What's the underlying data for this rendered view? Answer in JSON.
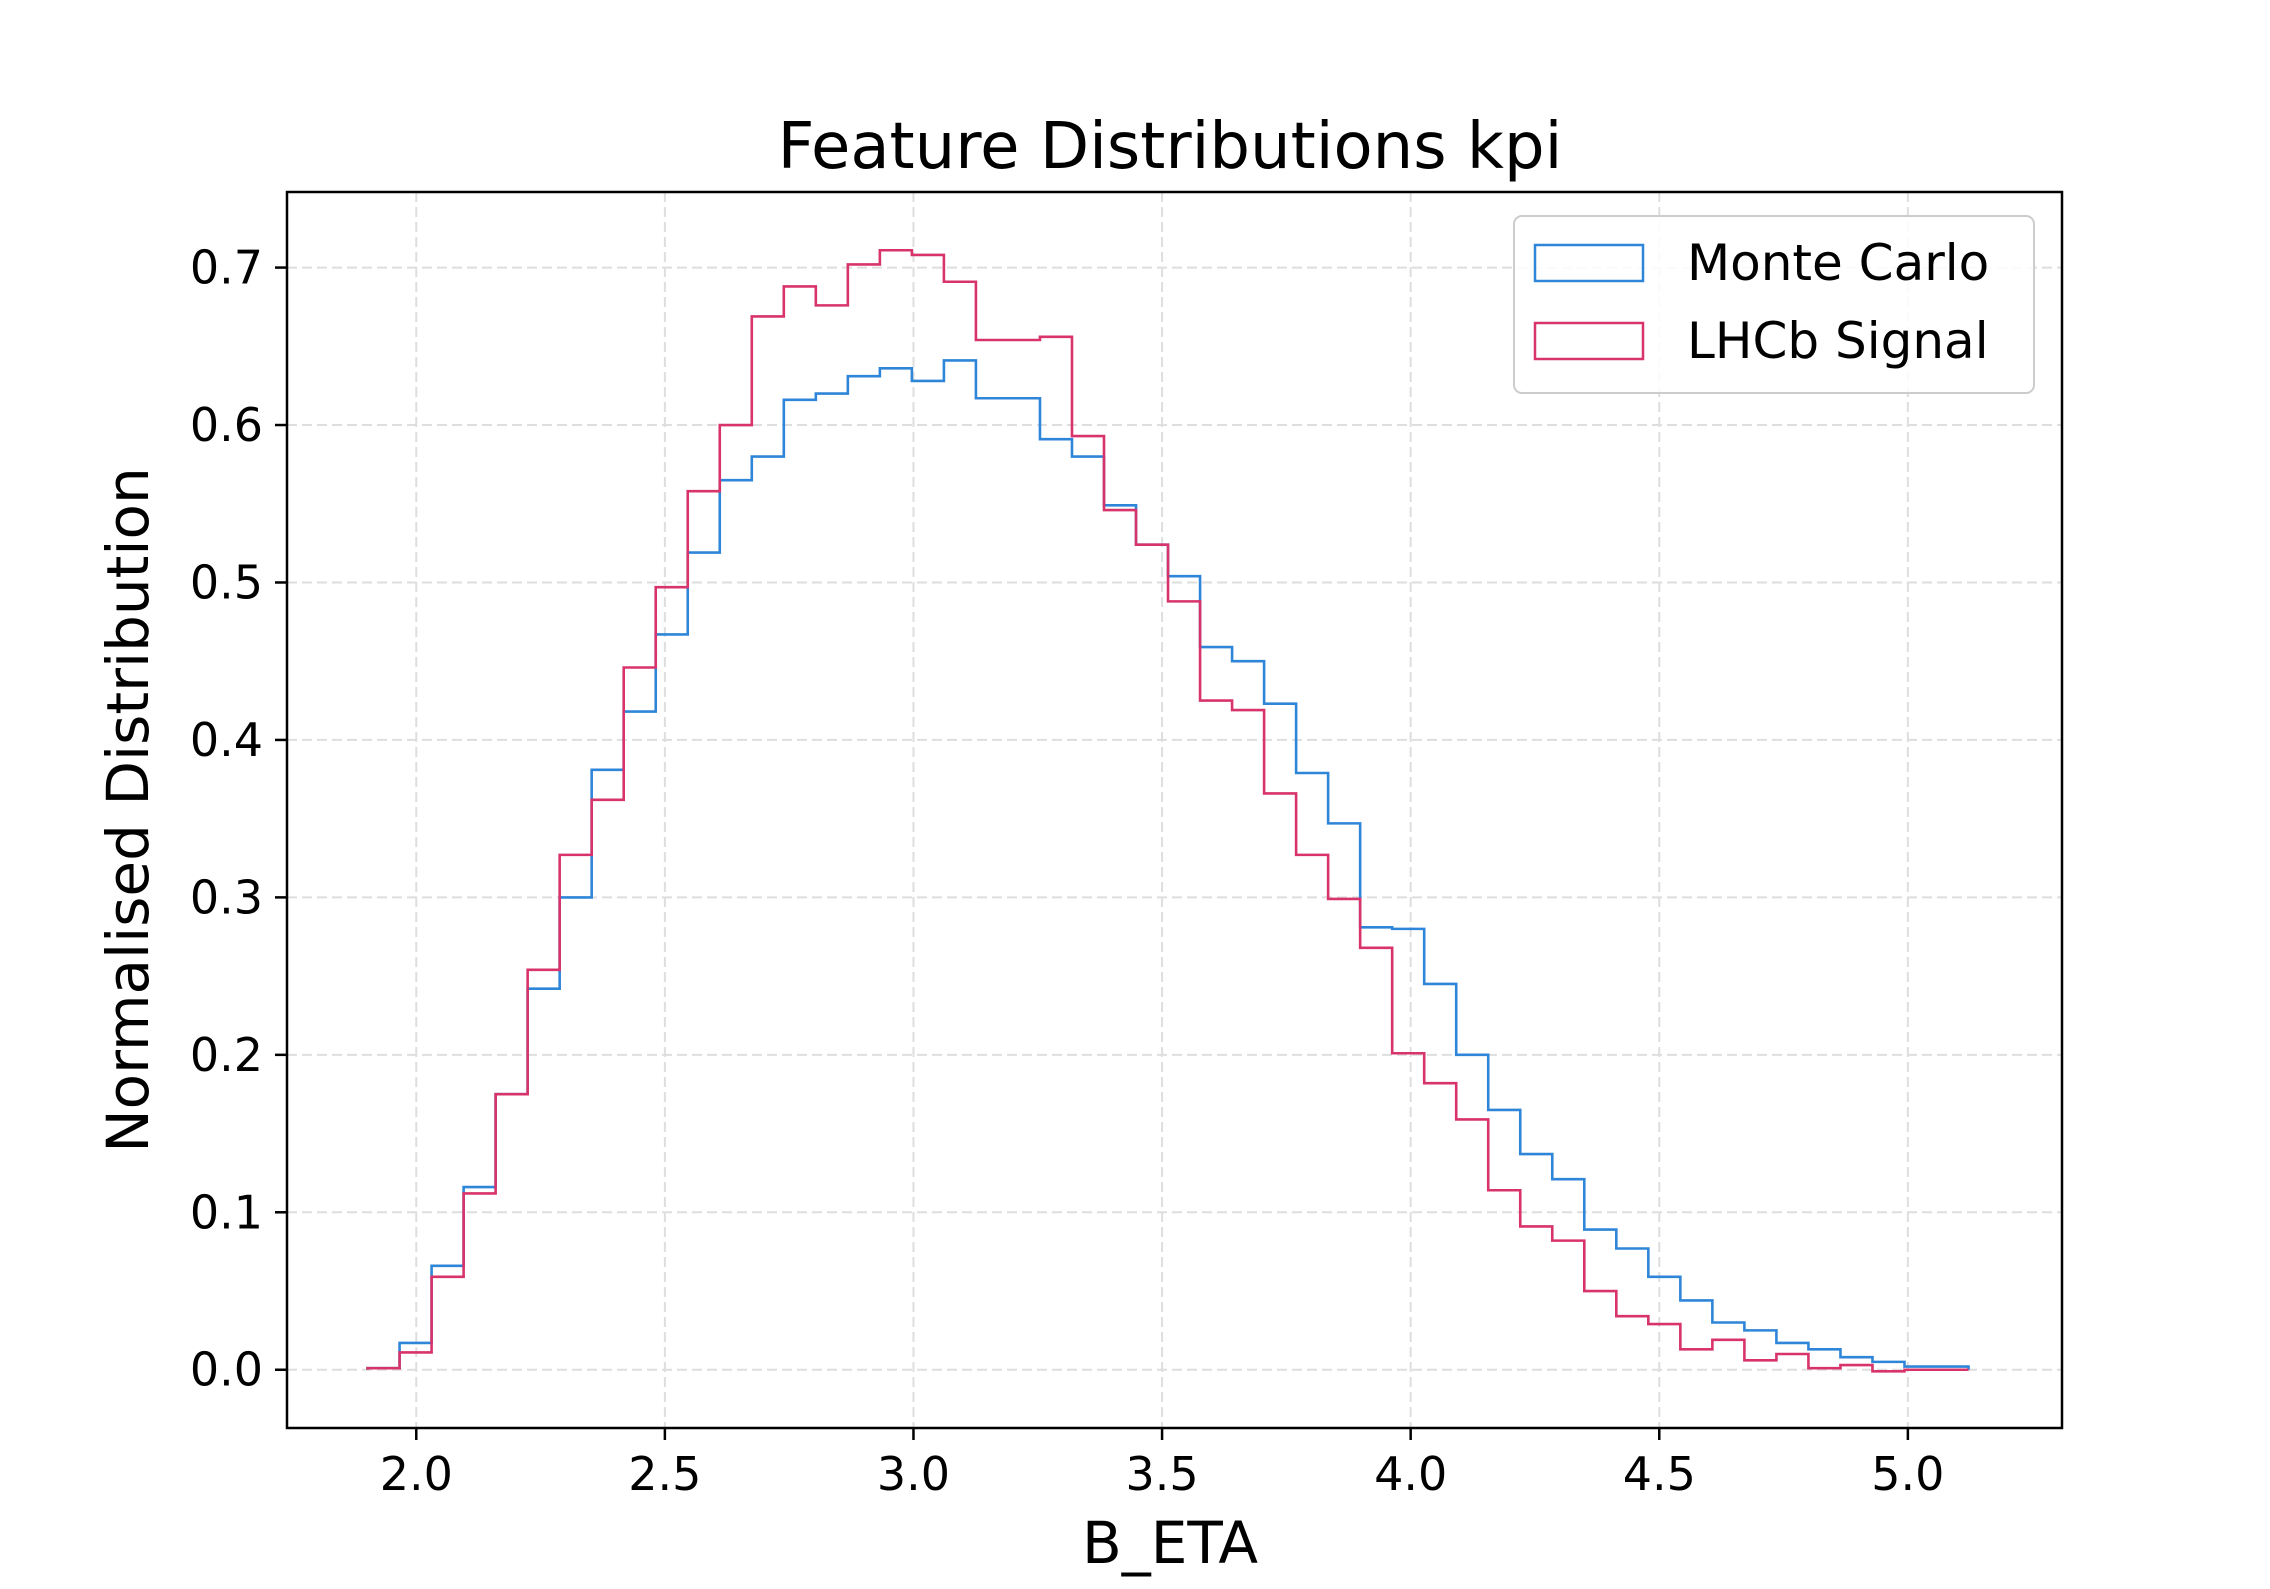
{
  "chart_data": {
    "type": "histogram",
    "title": "Feature Distributions kpi",
    "xlabel": "B_ETA",
    "ylabel": "Normalised Distribution",
    "xlim": [
      1.74,
      5.31
    ],
    "ylim": [
      -0.037,
      0.748
    ],
    "xticks": [
      2.0,
      2.5,
      3.0,
      3.5,
      4.0,
      4.5,
      5.0
    ],
    "xtick_labels": [
      "2.0",
      "2.5",
      "3.0",
      "3.5",
      "4.0",
      "4.5",
      "5.0"
    ],
    "yticks": [
      0.0,
      0.1,
      0.2,
      0.3,
      0.4,
      0.5,
      0.6,
      0.7
    ],
    "ytick_labels": [
      "0.0",
      "0.1",
      "0.2",
      "0.3",
      "0.4",
      "0.5",
      "0.6",
      "0.7"
    ],
    "grid": true,
    "legend_position": "top-right",
    "bin_edges": [
      1.902,
      1.9664,
      2.0308,
      2.0952,
      2.1596,
      2.224,
      2.2884,
      2.3528,
      2.4172,
      2.4816,
      2.546,
      2.6104,
      2.6748,
      2.7392,
      2.8036,
      2.868,
      2.9324,
      2.9968,
      3.0612,
      3.1256,
      3.19,
      3.2544,
      3.3188,
      3.3832,
      3.4476,
      3.512,
      3.5764,
      3.6408,
      3.7052,
      3.7696,
      3.834,
      3.8984,
      3.9628,
      4.0272,
      4.0916,
      4.156,
      4.2204,
      4.2848,
      4.3492,
      4.4136,
      4.478,
      4.5424,
      4.6068,
      4.6712,
      4.7356,
      4.8,
      4.8644,
      4.9288,
      4.9932,
      5.0576,
      5.122
    ],
    "series": [
      {
        "name": "Monte Carlo",
        "color": "#2f86d8",
        "values": [
          0.001,
          0.017,
          0.066,
          0.116,
          0.175,
          0.242,
          0.3,
          0.381,
          0.418,
          0.467,
          0.519,
          0.565,
          0.58,
          0.616,
          0.62,
          0.631,
          0.636,
          0.628,
          0.641,
          0.617,
          0.617,
          0.591,
          0.58,
          0.549,
          0.524,
          0.504,
          0.459,
          0.45,
          0.423,
          0.379,
          0.347,
          0.281,
          0.28,
          0.245,
          0.2,
          0.165,
          0.137,
          0.121,
          0.089,
          0.077,
          0.059,
          0.044,
          0.03,
          0.025,
          0.017,
          0.013,
          0.008,
          0.005,
          0.002,
          0.002
        ]
      },
      {
        "name": "LHCb Signal",
        "color": "#d8336a",
        "values": [
          0.001,
          0.011,
          0.059,
          0.112,
          0.175,
          0.254,
          0.327,
          0.362,
          0.446,
          0.497,
          0.558,
          0.6,
          0.669,
          0.688,
          0.676,
          0.702,
          0.711,
          0.708,
          0.691,
          0.654,
          0.654,
          0.656,
          0.593,
          0.546,
          0.524,
          0.488,
          0.425,
          0.419,
          0.366,
          0.327,
          0.299,
          0.268,
          0.201,
          0.182,
          0.159,
          0.114,
          0.091,
          0.082,
          0.05,
          0.034,
          0.029,
          0.013,
          0.019,
          0.006,
          0.01,
          0.001,
          0.003,
          -0.001,
          0.0,
          0.0
        ]
      }
    ]
  }
}
